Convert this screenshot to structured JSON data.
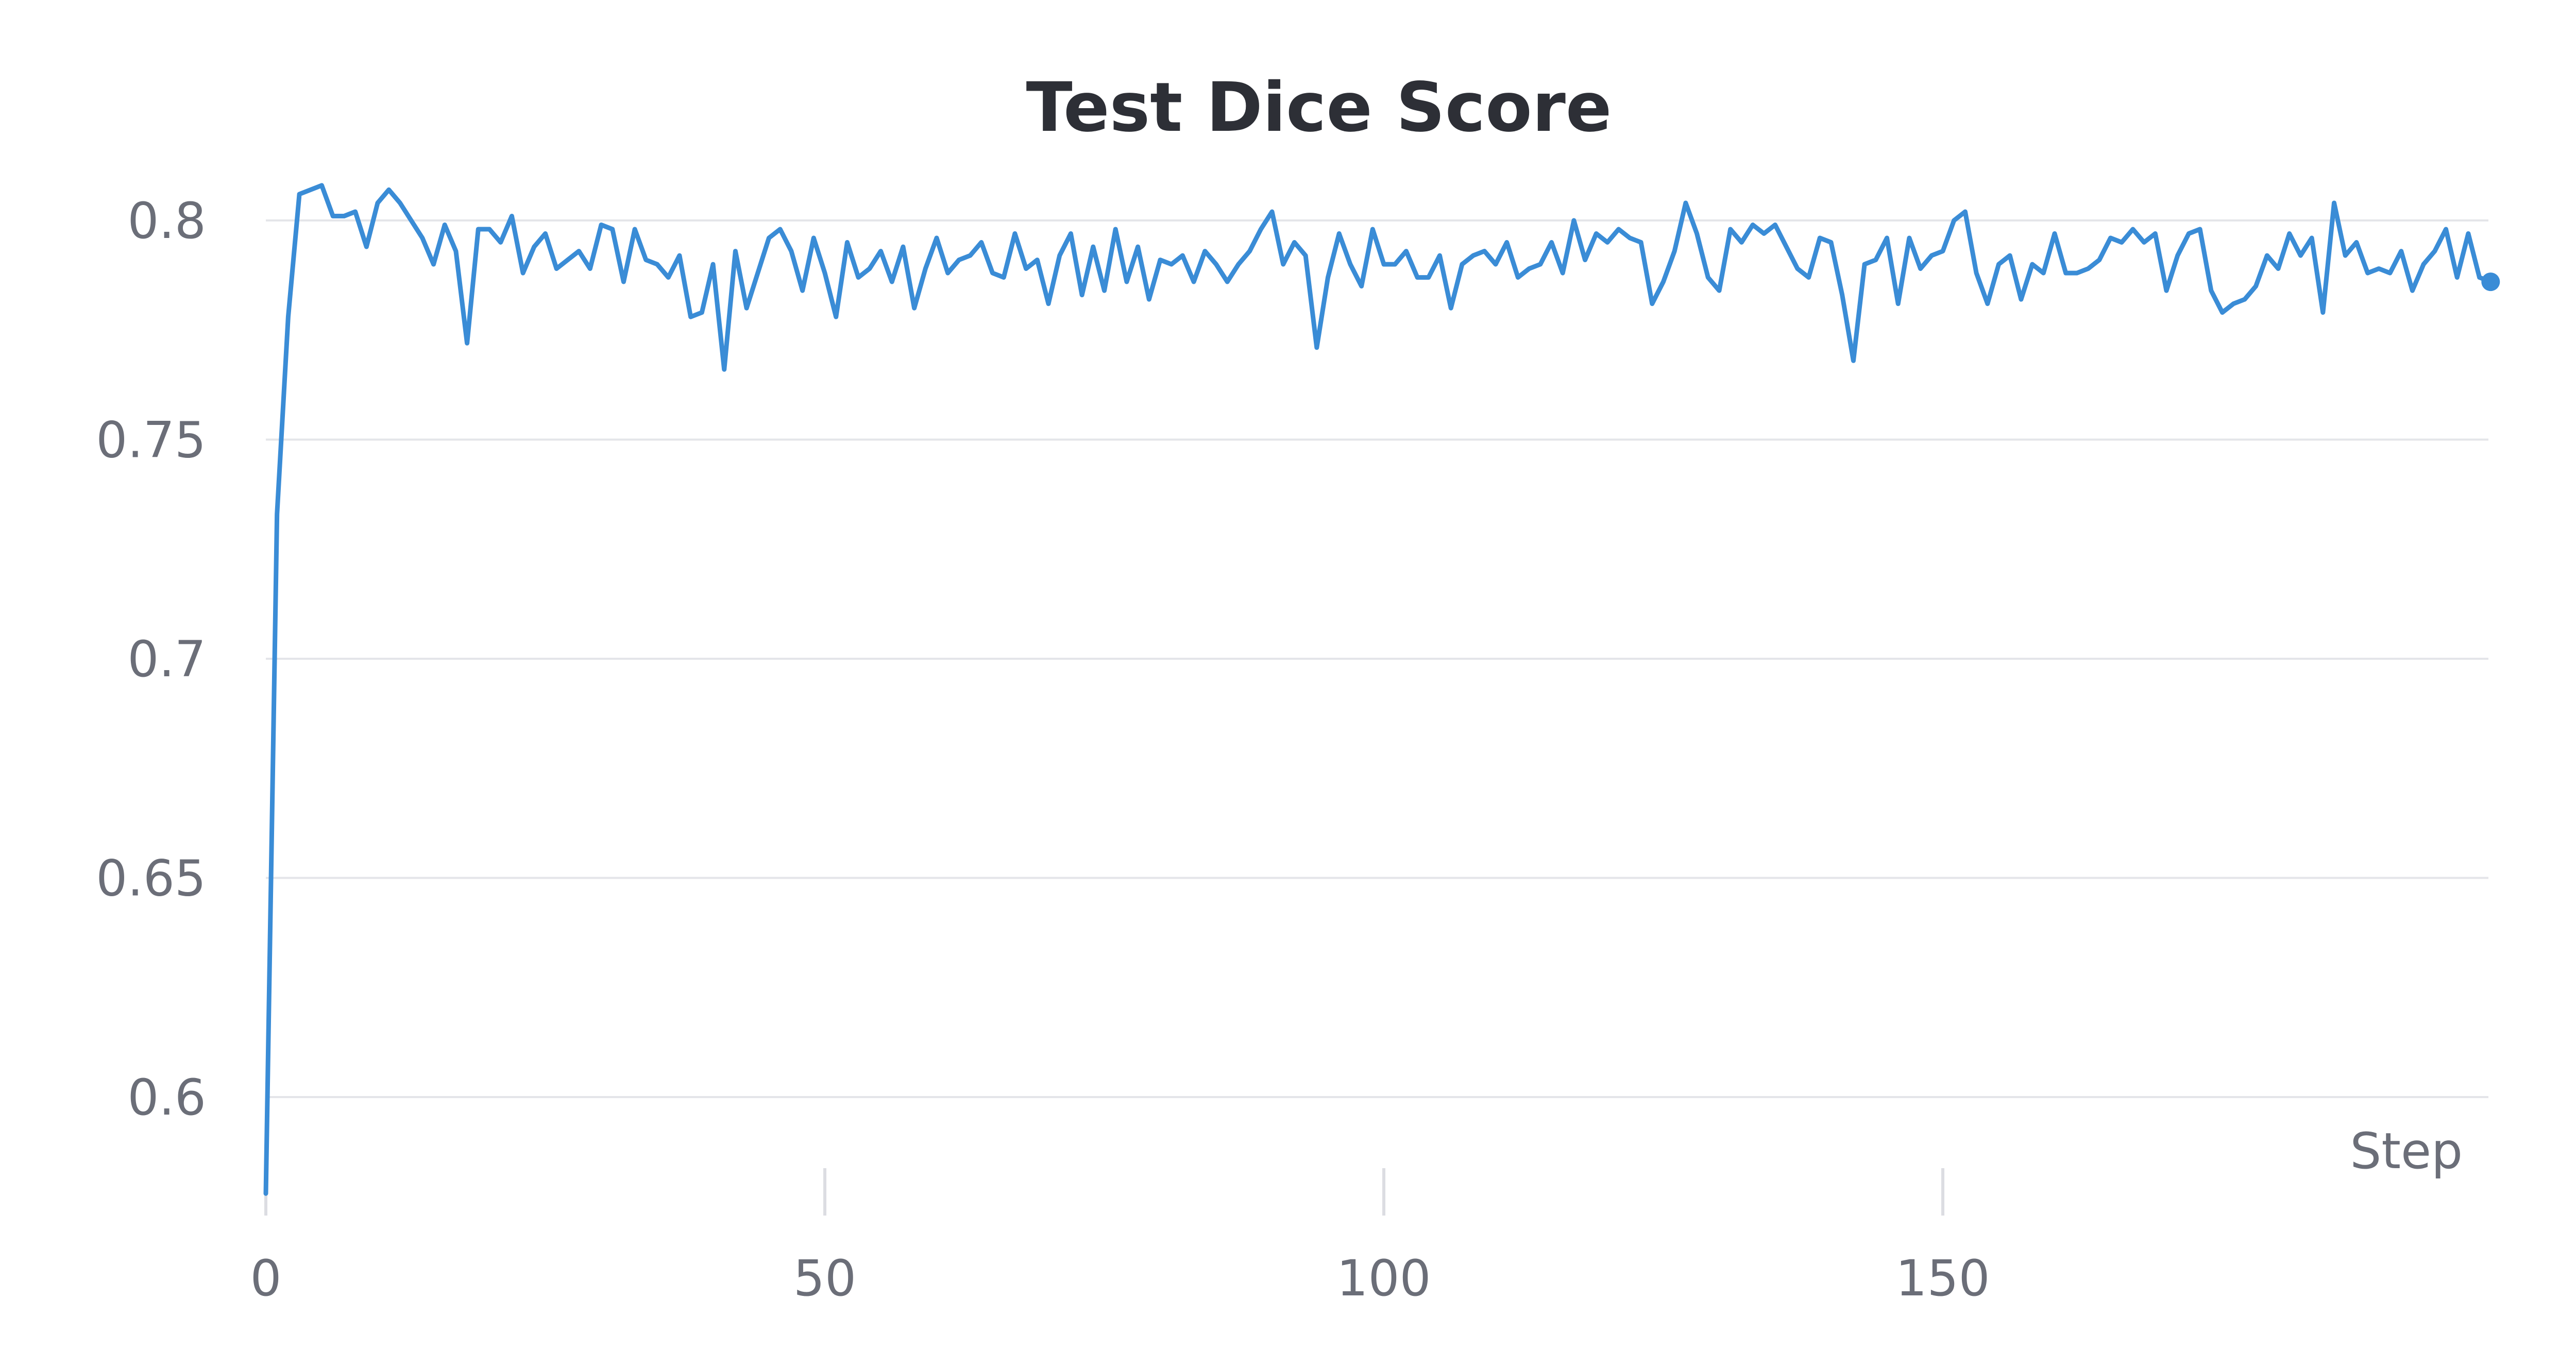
{
  "chart_data": {
    "type": "line",
    "title": "Test Dice Score",
    "xlabel": "Step",
    "ylabel": "",
    "xlim": [
      0,
      200
    ],
    "ylim": [
      0.575,
      0.82
    ],
    "x_ticks": [
      0,
      50,
      100,
      150
    ],
    "x_tick_labels": [
      "0",
      "50",
      "100",
      "150"
    ],
    "y_ticks": [
      0.6,
      0.65,
      0.7,
      0.75,
      0.8
    ],
    "y_tick_labels": [
      "0.6",
      "0.65",
      "0.7",
      "0.75",
      "0.8"
    ],
    "grid": "horizontal",
    "colors": {
      "line": "#3a8cd6",
      "grid": "#e4e5e9",
      "text": "#6b6e78",
      "title": "#2d2f36"
    },
    "series": [
      {
        "values": [
          0.578,
          0.733,
          0.778,
          0.806,
          0.807,
          0.808,
          0.801,
          0.801,
          0.802,
          0.794,
          0.804,
          0.807,
          0.804,
          0.8,
          0.796,
          0.79,
          0.799,
          0.793,
          0.772,
          0.798,
          0.798,
          0.795,
          0.801,
          0.788,
          0.794,
          0.797,
          0.789,
          0.791,
          0.793,
          0.789,
          0.799,
          0.798,
          0.786,
          0.798,
          0.791,
          0.79,
          0.787,
          0.792,
          0.778,
          0.779,
          0.79,
          0.766,
          0.793,
          0.78,
          0.788,
          0.796,
          0.798,
          0.793,
          0.784,
          0.796,
          0.788,
          0.778,
          0.795,
          0.787,
          0.789,
          0.793,
          0.786,
          0.794,
          0.78,
          0.789,
          0.796,
          0.788,
          0.791,
          0.792,
          0.795,
          0.788,
          0.787,
          0.797,
          0.789,
          0.791,
          0.781,
          0.792,
          0.797,
          0.783,
          0.794,
          0.784,
          0.798,
          0.786,
          0.794,
          0.782,
          0.791,
          0.79,
          0.792,
          0.786,
          0.793,
          0.79,
          0.786,
          0.79,
          0.793,
          0.798,
          0.802,
          0.79,
          0.795,
          0.792,
          0.771,
          0.787,
          0.797,
          0.79,
          0.785,
          0.798,
          0.79,
          0.79,
          0.793,
          0.787,
          0.787,
          0.792,
          0.78,
          0.79,
          0.792,
          0.793,
          0.79,
          0.795,
          0.787,
          0.789,
          0.79,
          0.795,
          0.788,
          0.8,
          0.791,
          0.797,
          0.795,
          0.798,
          0.796,
          0.795,
          0.781,
          0.786,
          0.793,
          0.804,
          0.797,
          0.787,
          0.784,
          0.798,
          0.795,
          0.799,
          0.797,
          0.799,
          0.794,
          0.789,
          0.787,
          0.796,
          0.795,
          0.783,
          0.768,
          0.79,
          0.791,
          0.796,
          0.781,
          0.796,
          0.789,
          0.792,
          0.793,
          0.8,
          0.802,
          0.788,
          0.781,
          0.79,
          0.792,
          0.782,
          0.79,
          0.788,
          0.797,
          0.788,
          0.788,
          0.789,
          0.791,
          0.796,
          0.795,
          0.798,
          0.795,
          0.797,
          0.784,
          0.792,
          0.797,
          0.798,
          0.784,
          0.779,
          0.781,
          0.782,
          0.785,
          0.792,
          0.789,
          0.797,
          0.792,
          0.796,
          0.779,
          0.804,
          0.792,
          0.795,
          0.788,
          0.789,
          0.788,
          0.793,
          0.784,
          0.79,
          0.793,
          0.798,
          0.787,
          0.797,
          0.787,
          0.786
        ]
      }
    ]
  }
}
